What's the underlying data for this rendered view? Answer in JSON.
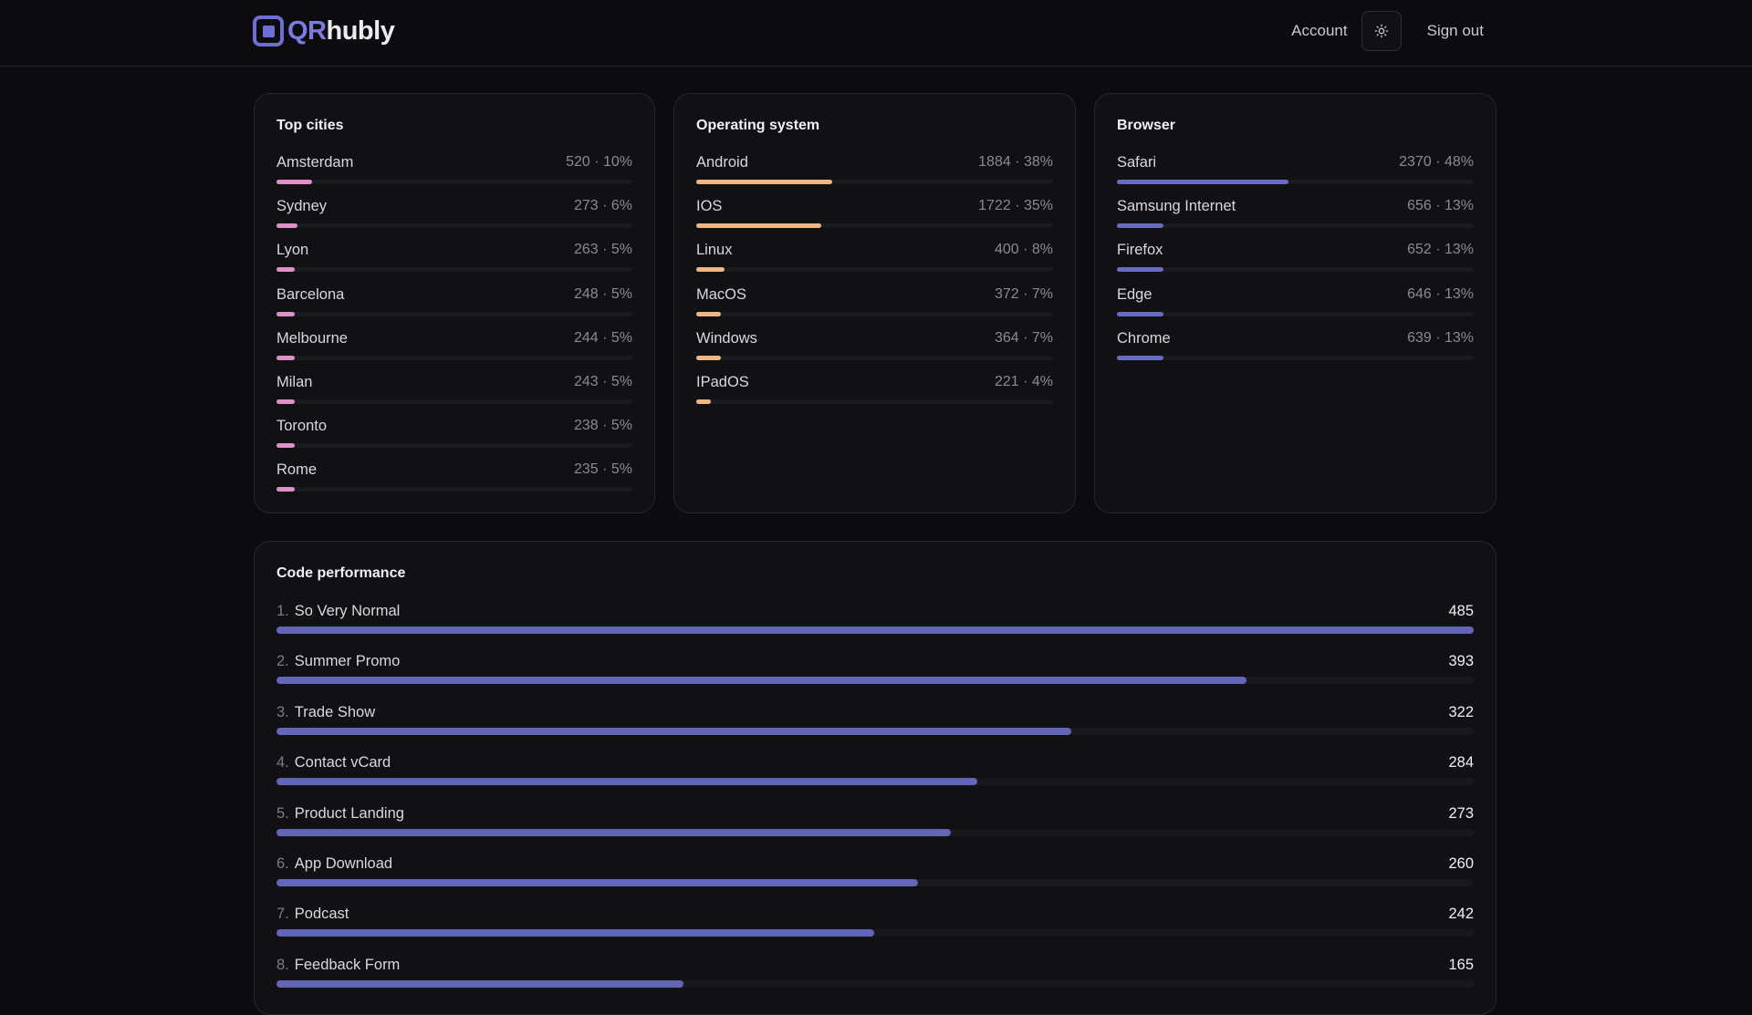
{
  "header": {
    "logo_qr": "QR",
    "logo_rest": "hubly",
    "account_label": "Account",
    "theme_icon": "sun-icon",
    "signout_label": "Sign out"
  },
  "colors": {
    "cities_bar": "#e08fcb",
    "os_bar": "#f0b782",
    "browser_bar": "#6a6cc3",
    "perf_bar": "#6365b8",
    "accent": "#7b7be0"
  },
  "cities": {
    "title": "Top cities",
    "items": [
      {
        "label": "Amsterdam",
        "stat": "520 · 10%",
        "pct": 10
      },
      {
        "label": "Sydney",
        "stat": "273 · 6%",
        "pct": 6
      },
      {
        "label": "Lyon",
        "stat": "263 · 5%",
        "pct": 5
      },
      {
        "label": "Barcelona",
        "stat": "248 · 5%",
        "pct": 5
      },
      {
        "label": "Melbourne",
        "stat": "244 · 5%",
        "pct": 5
      },
      {
        "label": "Milan",
        "stat": "243 · 5%",
        "pct": 5
      },
      {
        "label": "Toronto",
        "stat": "238 · 5%",
        "pct": 5
      },
      {
        "label": "Rome",
        "stat": "235 · 5%",
        "pct": 5
      }
    ]
  },
  "os": {
    "title": "Operating system",
    "items": [
      {
        "label": "Android",
        "stat": "1884 · 38%",
        "pct": 38
      },
      {
        "label": "IOS",
        "stat": "1722 · 35%",
        "pct": 35
      },
      {
        "label": "Linux",
        "stat": "400 · 8%",
        "pct": 8
      },
      {
        "label": "MacOS",
        "stat": "372 · 7%",
        "pct": 7
      },
      {
        "label": "Windows",
        "stat": "364 · 7%",
        "pct": 7
      },
      {
        "label": "IPadOS",
        "stat": "221 · 4%",
        "pct": 4
      }
    ]
  },
  "browser": {
    "title": "Browser",
    "items": [
      {
        "label": "Safari",
        "stat": "2370 · 48%",
        "pct": 48
      },
      {
        "label": "Samsung Internet",
        "stat": "656 · 13%",
        "pct": 13
      },
      {
        "label": "Firefox",
        "stat": "652 · 13%",
        "pct": 13
      },
      {
        "label": "Edge",
        "stat": "646 · 13%",
        "pct": 13
      },
      {
        "label": "Chrome",
        "stat": "639 · 13%",
        "pct": 13
      }
    ]
  },
  "performance": {
    "title": "Code performance",
    "max": 485,
    "items": [
      {
        "rank": "1.",
        "label": "So Very Normal",
        "value": 485
      },
      {
        "rank": "2.",
        "label": "Summer Promo",
        "value": 393
      },
      {
        "rank": "3.",
        "label": "Trade Show",
        "value": 322
      },
      {
        "rank": "4.",
        "label": "Contact vCard",
        "value": 284
      },
      {
        "rank": "5.",
        "label": "Product Landing",
        "value": 273
      },
      {
        "rank": "6.",
        "label": "App Download",
        "value": 260
      },
      {
        "rank": "7.",
        "label": "Podcast",
        "value": 242
      },
      {
        "rank": "8.",
        "label": "Feedback Form",
        "value": 165
      }
    ]
  }
}
